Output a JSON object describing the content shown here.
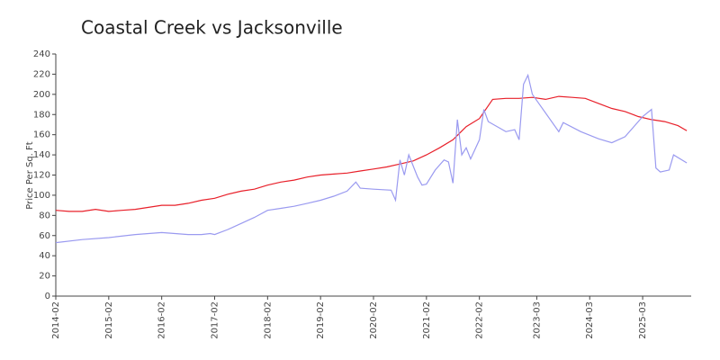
{
  "chart_data": {
    "type": "line",
    "title": "Coastal Creek vs Jacksonville",
    "y_label": "Price Per Sq. Ft",
    "xlim": [
      "2014-02",
      "2026-02"
    ],
    "xticks": [
      "2014-02",
      "2015-02",
      "2016-02",
      "2017-02",
      "2018-02",
      "2019-02",
      "2020-02",
      "2021-02",
      "2022-02",
      "2023-03",
      "2024-03",
      "2025-03"
    ],
    "ylim": [
      0,
      240
    ],
    "yticks": [
      0,
      20,
      40,
      60,
      80,
      100,
      120,
      140,
      160,
      180,
      200,
      220,
      240
    ],
    "grid": false,
    "series": [
      {
        "color": "#e8202a",
        "x": [
          "2014-02",
          "2014-05",
          "2014-08",
          "2014-11",
          "2015-02",
          "2015-05",
          "2015-08",
          "2015-11",
          "2016-02",
          "2016-05",
          "2016-08",
          "2016-11",
          "2017-02",
          "2017-05",
          "2017-08",
          "2017-11",
          "2018-02",
          "2018-05",
          "2018-08",
          "2018-11",
          "2019-02",
          "2019-05",
          "2019-08",
          "2019-11",
          "2020-02",
          "2020-05",
          "2020-08",
          "2020-11",
          "2021-02",
          "2021-05",
          "2021-08",
          "2021-11",
          "2022-02",
          "2022-05",
          "2022-08",
          "2022-11",
          "2023-02",
          "2023-05",
          "2023-08",
          "2023-11",
          "2024-02",
          "2024-05",
          "2024-08",
          "2024-11",
          "2025-02",
          "2025-05",
          "2025-08",
          "2025-11",
          "2026-01"
        ],
        "values": [
          85,
          84,
          84,
          86,
          84,
          85,
          86,
          88,
          90,
          90,
          92,
          95,
          97,
          101,
          104,
          106,
          110,
          113,
          115,
          118,
          120,
          121,
          122,
          124,
          126,
          128,
          131,
          134,
          140,
          147,
          155,
          168,
          176,
          195,
          196,
          196,
          197,
          195,
          198,
          197,
          196,
          191,
          186,
          183,
          178,
          175,
          173,
          169,
          164
        ]
      },
      {
        "color": "#9a9af0",
        "x": [
          "2014-02",
          "2014-08",
          "2015-02",
          "2015-08",
          "2016-02",
          "2016-08",
          "2016-11",
          "2017-01",
          "2017-02",
          "2017-05",
          "2017-08",
          "2017-11",
          "2018-02",
          "2018-05",
          "2018-08",
          "2018-11",
          "2019-02",
          "2019-05",
          "2019-08",
          "2019-10",
          "2019-11",
          "2020-02",
          "2020-06",
          "2020-07",
          "2020-08",
          "2020-09",
          "2020-10",
          "2020-12",
          "2021-01",
          "2021-02",
          "2021-04",
          "2021-06",
          "2021-07",
          "2021-08",
          "2021-09",
          "2021-10",
          "2021-11",
          "2021-12",
          "2022-02",
          "2022-03",
          "2022-04",
          "2022-08",
          "2022-10",
          "2022-11",
          "2022-12",
          "2023-01",
          "2023-02",
          "2023-08",
          "2023-09",
          "2024-01",
          "2024-05",
          "2024-08",
          "2024-11",
          "2025-03",
          "2025-05",
          "2025-06",
          "2025-07",
          "2025-09",
          "2025-10",
          "2026-01"
        ],
        "values": [
          53,
          56,
          58,
          61,
          63,
          61,
          61,
          62,
          61,
          66,
          72,
          78,
          85,
          87,
          89,
          92,
          95,
          99,
          104,
          113,
          107,
          106,
          105,
          95,
          135,
          120,
          140,
          118,
          110,
          111,
          125,
          135,
          133,
          112,
          175,
          140,
          147,
          136,
          155,
          185,
          173,
          163,
          165,
          155,
          210,
          219,
          200,
          163,
          172,
          163,
          156,
          152,
          158,
          178,
          185,
          127,
          123,
          125,
          140,
          132
        ]
      }
    ]
  }
}
